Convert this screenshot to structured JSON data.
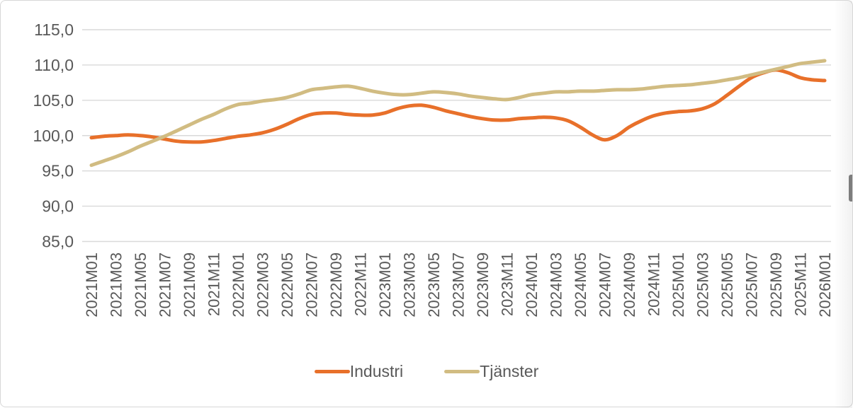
{
  "chart_data": {
    "type": "line",
    "title": "",
    "xlabel": "",
    "ylabel": "",
    "x": [
      "2021M01",
      "2021M02",
      "2021M03",
      "2021M04",
      "2021M05",
      "2021M06",
      "2021M07",
      "2021M08",
      "2021M09",
      "2021M10",
      "2021M11",
      "2021M12",
      "2022M01",
      "2022M02",
      "2022M03",
      "2022M04",
      "2022M05",
      "2022M06",
      "2022M07",
      "2022M08",
      "2022M09",
      "2022M10",
      "2022M11",
      "2022M12",
      "2023M01",
      "2023M02",
      "2023M03",
      "2023M04",
      "2023M05",
      "2023M06",
      "2023M07",
      "2023M08",
      "2023M09",
      "2023M10",
      "2023M11",
      "2023M12",
      "2024M01",
      "2024M02",
      "2024M03",
      "2024M04",
      "2024M05",
      "2024M06",
      "2024M07",
      "2024M08",
      "2024M09",
      "2024M10",
      "2024M11",
      "2024M12",
      "2025M01",
      "2025M02",
      "2025M03",
      "2025M04",
      "2025M05",
      "2025M06",
      "2025M07",
      "2025M08",
      "2025M09",
      "2025M10",
      "2025M11",
      "2025M12",
      "2026M01"
    ],
    "x_tick_step": 2,
    "series": [
      {
        "name": "Industri",
        "color": "#E8702A",
        "values": [
          99.7,
          99.9,
          100.0,
          100.1,
          100.0,
          99.8,
          99.5,
          99.2,
          99.1,
          99.1,
          99.3,
          99.6,
          99.9,
          100.1,
          100.4,
          100.9,
          101.6,
          102.4,
          103.0,
          103.2,
          103.2,
          103.0,
          102.9,
          102.9,
          103.2,
          103.8,
          104.2,
          104.3,
          104.0,
          103.5,
          103.1,
          102.7,
          102.4,
          102.2,
          102.2,
          102.4,
          102.5,
          102.6,
          102.5,
          102.1,
          101.2,
          100.1,
          99.4,
          100.0,
          101.2,
          102.1,
          102.8,
          103.2,
          103.4,
          103.5,
          103.8,
          104.5,
          105.7,
          107.0,
          108.2,
          108.9,
          109.3,
          108.9,
          108.2,
          107.9,
          107.8
        ]
      },
      {
        "name": "Tjänster",
        "color": "#D1BC82",
        "values": [
          95.8,
          96.4,
          97.0,
          97.7,
          98.5,
          99.2,
          99.9,
          100.7,
          101.5,
          102.3,
          103.0,
          103.8,
          104.4,
          104.6,
          104.9,
          105.1,
          105.4,
          105.9,
          106.5,
          106.7,
          106.9,
          107.0,
          106.7,
          106.3,
          106.0,
          105.8,
          105.8,
          106.0,
          106.2,
          106.1,
          105.9,
          105.6,
          105.4,
          105.2,
          105.1,
          105.4,
          105.8,
          106.0,
          106.2,
          106.2,
          106.3,
          106.3,
          106.4,
          106.5,
          106.5,
          106.6,
          106.8,
          107.0,
          107.1,
          107.2,
          107.4,
          107.6,
          107.9,
          108.2,
          108.6,
          109.0,
          109.4,
          109.8,
          110.2,
          110.4,
          110.6
        ]
      }
    ],
    "y_ticks": [
      "85,0",
      "90,0",
      "95,0",
      "100,0",
      "105,0",
      "110,0",
      "115,0"
    ],
    "y_tick_values": [
      85,
      90,
      95,
      100,
      105,
      110,
      115
    ],
    "ylim": [
      85,
      115
    ],
    "grid": true,
    "legend_position": "bottom",
    "axis_text_color": "#595959",
    "gridline_color": "#D9D9D9",
    "line_width": 5
  }
}
